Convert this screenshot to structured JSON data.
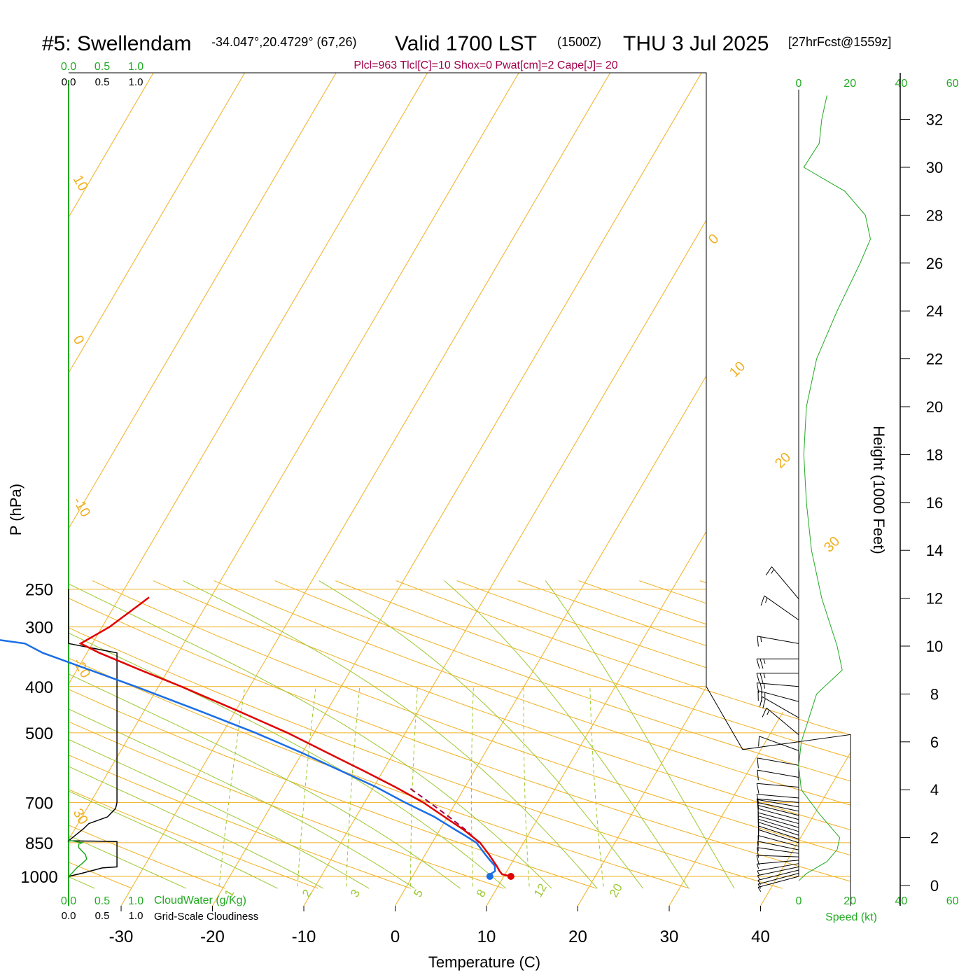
{
  "title": {
    "station": "#5: Swellendam",
    "coords": "-34.047°,20.4729° (67,26)",
    "valid": "Valid 1700 LST",
    "utc": "(1500Z)",
    "date": "THU 3 Jul 2025",
    "forecast": "[27hrFcst@1559z]"
  },
  "info_line": "Plcl=963 Tlcl[C]=10 Shox=0 Pwat[cm]=2 Cape[J]= 20",
  "axes": {
    "x_label": "Temperature (C)",
    "y_label": "P (hPa)",
    "height_label": "Height (1000 Feet)",
    "speed_label": "Speed (kt)",
    "cloudwater_label": "CloudWater (g/Kg)",
    "cloudiness_label": "Grid-Scale Cloudiness"
  },
  "colors": {
    "isotherm": "#f0b020",
    "mixing_ratio": "#9cc830",
    "temperature": "#e00000",
    "dewpoint": "#1a6ee6",
    "cloud_water": "#22aa22",
    "wind_speed": "#22aa22",
    "barbs": "#000000",
    "info": "#a0004a"
  },
  "chart_data": {
    "type": "skew-t",
    "x": {
      "label": "Temperature (C)",
      "ticks": [
        "-30",
        "-20",
        "-10",
        "0",
        "10",
        "20",
        "30",
        "40"
      ],
      "range": [
        -33,
        36
      ]
    },
    "y": {
      "label": "P (hPa)",
      "scale": "log",
      "range": [
        1000,
        250
      ],
      "ticks": [
        "250",
        "300",
        "400",
        "500",
        "700",
        "850",
        "1000"
      ]
    },
    "isotherm_labels": [
      "10",
      "0",
      "-10",
      "-20",
      "30",
      "0",
      "10",
      "20",
      "30"
    ],
    "mixing_ratio_labels": [
      "1",
      "2",
      "3",
      "5",
      "8",
      "12",
      "20"
    ],
    "mixing_ratio_values": [
      1,
      2,
      3,
      5,
      8,
      12,
      20
    ],
    "temperature": {
      "pressure": [
        1000,
        990,
        975,
        950,
        925,
        900,
        850,
        800,
        750,
        700,
        650,
        600,
        550,
        500,
        450,
        400,
        370,
        340,
        325,
        300,
        270,
        260
      ],
      "temp": [
        14.7,
        13.6,
        13.1,
        12.4,
        11.6,
        10.8,
        9.0,
        6.4,
        3.3,
        0.0,
        -4.1,
        -8.8,
        -14.0,
        -19.7,
        -26.6,
        -34.5,
        -40.0,
        -45.8,
        -48.5,
        -46.5,
        -44.8,
        -44.2
      ]
    },
    "dewpoint": {
      "pressure": [
        1000,
        990,
        975,
        950,
        925,
        900,
        850,
        820,
        800,
        750,
        700,
        650,
        600,
        550,
        500,
        450,
        400,
        370,
        340,
        325,
        310,
        280,
        262
      ],
      "dewpoint": [
        12.4,
        12.3,
        12.6,
        12.2,
        11.3,
        10.4,
        8.6,
        6.8,
        5.5,
        2.2,
        -2.0,
        -6.2,
        -11.3,
        -16.8,
        -23.2,
        -30.8,
        -39.5,
        -45.5,
        -52.0,
        -54.6,
        -63.0,
        -74.0,
        -79.0
      ]
    },
    "parcel": {
      "pressure": [
        850,
        800,
        750,
        700,
        650
      ],
      "temp": [
        8.9,
        6.6,
        3.8,
        0.7,
        -2.7
      ]
    },
    "surface": {
      "temp": 14.7,
      "dewpoint": 12.4
    },
    "cloud_axis": {
      "ticks": [
        "0.0",
        "0.5",
        "1.0"
      ]
    },
    "cloudiness": {
      "pressure": [
        250,
        325,
        340,
        700,
        720,
        750,
        775,
        795,
        842,
        845,
        955,
        960,
        985,
        1000
      ],
      "value": [
        0,
        0,
        0.72,
        0.72,
        0.7,
        0.58,
        0.3,
        0.22,
        0,
        0.72,
        0.72,
        0.5,
        0.2,
        0
      ]
    },
    "cloud_water": {
      "pressure": [
        840,
        850,
        856,
        870,
        885,
        900,
        920,
        940,
        960,
        985,
        1000
      ],
      "value": [
        0,
        0.2,
        0.15,
        0.15,
        0.2,
        0.25,
        0.27,
        0.2,
        0.12,
        0.05,
        0
      ]
    },
    "wind_axis": {
      "ticks": [
        "0",
        "20",
        "40",
        "60"
      ],
      "range": [
        0,
        60
      ]
    },
    "wind_speed": {
      "height_kft": [
        0.2,
        0.5,
        1.0,
        1.5,
        2.0,
        3.0,
        4.0,
        5.0,
        6.0,
        8.0,
        9.0,
        10.0,
        12.0,
        14.0,
        16.0,
        18.0,
        20.0,
        22.0,
        24.0,
        26.0,
        27.0,
        28.0,
        29.0,
        30.0,
        31.0,
        32.0,
        33.0
      ],
      "speed_kt": [
        0,
        3,
        11,
        15,
        16,
        8,
        1,
        0,
        1,
        7,
        17,
        15,
        9,
        5,
        3,
        2,
        3,
        7,
        15,
        24,
        28,
        26,
        18,
        2,
        8,
        9,
        11
      ]
    },
    "height_axis": {
      "ticks": [
        "0",
        "2",
        "4",
        "6",
        "8",
        "10",
        "12",
        "14",
        "16",
        "18",
        "20",
        "22",
        "24",
        "26",
        "28",
        "30",
        "32"
      ]
    },
    "wind_barbs": {
      "pressure": [
        262,
        290,
        325,
        350,
        375,
        400,
        430,
        465,
        505,
        545,
        585,
        620,
        650,
        685,
        700,
        715,
        730,
        745,
        760,
        775,
        790,
        805,
        820,
        835,
        850,
        865,
        880,
        895,
        910,
        925,
        940,
        955,
        970,
        985,
        1000
      ],
      "speed_kt": [
        15,
        15,
        15,
        25,
        25,
        25,
        25,
        20,
        15,
        10,
        10,
        10,
        10,
        10,
        10,
        10,
        10,
        10,
        10,
        10,
        10,
        10,
        10,
        10,
        10,
        10,
        10,
        10,
        10,
        5,
        5,
        5,
        5,
        5,
        5
      ],
      "dir_deg": [
        220,
        235,
        260,
        270,
        270,
        265,
        255,
        240,
        230,
        250,
        260,
        260,
        265,
        265,
        265,
        260,
        258,
        256,
        255,
        255,
        254,
        253,
        252,
        252,
        252,
        255,
        258,
        262,
        268,
        275,
        280,
        282,
        284,
        285,
        285
      ]
    }
  }
}
